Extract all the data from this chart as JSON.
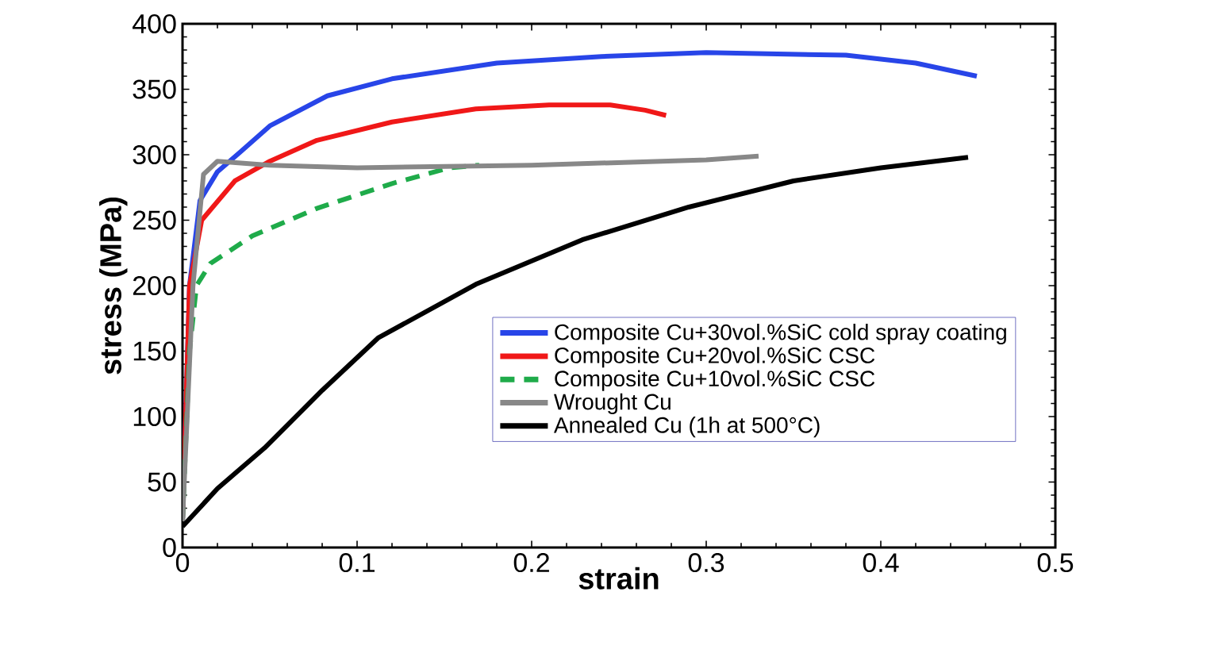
{
  "chart_data": {
    "type": "line",
    "xlabel": "strain",
    "ylabel": "stress (MPa)",
    "xlim": [
      0,
      0.5
    ],
    "ylim": [
      0,
      400
    ],
    "xticks": [
      0,
      0.1,
      0.2,
      0.3,
      0.4,
      0.5
    ],
    "yticks": [
      0,
      50,
      100,
      150,
      200,
      250,
      300,
      350,
      400
    ],
    "legend": "bottom right",
    "grid": false,
    "series": [
      {
        "name": "Composite Cu+30vol.%SiC cold spray coating",
        "color": "#2845e8",
        "line_style": "solid",
        "x": [
          0,
          0.004,
          0.01,
          0.02,
          0.033,
          0.05,
          0.083,
          0.12,
          0.18,
          0.24,
          0.3,
          0.38,
          0.42,
          0.455
        ],
        "values": [
          20,
          200,
          265,
          287,
          302,
          322,
          345,
          358,
          370,
          375,
          378,
          376,
          370,
          360
        ]
      },
      {
        "name": "Composite Cu+20vol.%SiC CSC",
        "color": "#f01818",
        "line_style": "solid",
        "x": [
          0,
          0.004,
          0.011,
          0.03,
          0.05,
          0.077,
          0.12,
          0.168,
          0.21,
          0.245,
          0.265,
          0.277
        ],
        "values": [
          20,
          200,
          250,
          280,
          295,
          311,
          325,
          335,
          338,
          338,
          334,
          330
        ]
      },
      {
        "name": "Composite Cu+10vol.%SiC CSC",
        "color": "#1fab4a",
        "line_style": "dashed",
        "x": [
          0,
          0.004,
          0.008,
          0.016,
          0.04,
          0.077,
          0.12,
          0.153,
          0.17
        ],
        "values": [
          20,
          150,
          200,
          217,
          238,
          259,
          278,
          290,
          292
        ]
      },
      {
        "name": "Wrought Cu",
        "color": "#888888",
        "line_style": "solid",
        "x": [
          0,
          0.006,
          0.012,
          0.02,
          0.05,
          0.1,
          0.2,
          0.3,
          0.33
        ],
        "values": [
          20,
          200,
          285,
          295,
          292,
          290,
          292,
          296,
          299
        ]
      },
      {
        "name": "Annealed Cu (1h at 500°C)",
        "color": "#000000",
        "line_style": "solid",
        "x": [
          0,
          0.02,
          0.047,
          0.08,
          0.112,
          0.168,
          0.229,
          0.29,
          0.35,
          0.4,
          0.45
        ],
        "values": [
          16,
          45,
          76,
          120,
          160,
          201,
          235,
          260,
          280,
          290,
          298
        ]
      }
    ]
  }
}
